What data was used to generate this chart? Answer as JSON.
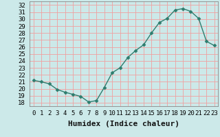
{
  "x": [
    0,
    1,
    2,
    3,
    4,
    5,
    6,
    7,
    8,
    9,
    10,
    11,
    12,
    13,
    14,
    15,
    16,
    17,
    18,
    19,
    20,
    21,
    22,
    23
  ],
  "y": [
    21.2,
    21.0,
    20.7,
    19.9,
    19.5,
    19.2,
    18.9,
    18.1,
    18.3,
    20.2,
    22.3,
    23.0,
    24.5,
    25.5,
    26.3,
    28.0,
    29.5,
    30.1,
    31.3,
    31.5,
    31.1,
    30.1,
    26.8,
    26.2
  ],
  "xlabel": "Humidex (Indice chaleur)",
  "xlim": [
    -0.5,
    23.5
  ],
  "ylim": [
    17.5,
    32.5
  ],
  "yticks": [
    18,
    19,
    20,
    21,
    22,
    23,
    24,
    25,
    26,
    27,
    28,
    29,
    30,
    31,
    32
  ],
  "xtick_labels": [
    "0",
    "1",
    "2",
    "3",
    "4",
    "5",
    "6",
    "7",
    "8",
    "9",
    "10",
    "11",
    "12",
    "13",
    "14",
    "15",
    "16",
    "17",
    "18",
    "19",
    "20",
    "21",
    "22",
    "23"
  ],
  "line_color": "#2e7d6e",
  "marker": "D",
  "marker_size": 2.5,
  "bg_color": "#cce9e9",
  "grid_color": "#f0a0a0",
  "label_fontsize": 8,
  "tick_fontsize": 6.5
}
